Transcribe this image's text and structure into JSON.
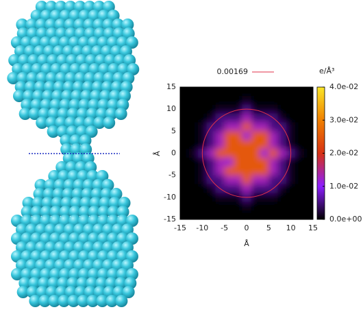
{
  "chart_data": {
    "type": "heatmap",
    "xlabel": "Å",
    "ylabel": "Å",
    "xlim": [
      -15,
      15
    ],
    "ylim": [
      -15,
      15
    ],
    "xticks": [
      -15,
      -10,
      -5,
      0,
      5,
      10,
      15
    ],
    "yticks": [
      -15,
      -10,
      -5,
      0,
      5,
      10,
      15
    ],
    "x": [
      -14,
      -12,
      -10,
      -8,
      -6,
      -4,
      -2,
      0,
      2,
      4,
      6,
      8,
      10,
      12,
      14
    ],
    "y": [
      14,
      12,
      10,
      8,
      6,
      4,
      2,
      0,
      -2,
      -4,
      -6,
      -8,
      -10,
      -12,
      -14
    ],
    "z": [
      [
        0,
        0,
        0,
        0,
        0,
        0,
        0,
        0,
        0,
        0,
        0,
        0,
        0,
        0,
        0
      ],
      [
        0,
        0,
        0,
        0,
        0,
        0,
        0,
        0.001,
        0,
        0,
        0,
        0,
        0,
        0,
        0
      ],
      [
        0,
        0,
        0,
        0,
        0.001,
        0.001,
        0.001,
        0.005,
        0.001,
        0.001,
        0.001,
        0,
        0,
        0,
        0
      ],
      [
        0,
        0,
        0,
        0.001,
        0.005,
        0.005,
        0.005,
        0.013,
        0.005,
        0.005,
        0.005,
        0.001,
        0,
        0,
        0
      ],
      [
        0,
        0,
        0.001,
        0.005,
        0.005,
        0.013,
        0.013,
        0.025,
        0.013,
        0.013,
        0.005,
        0.005,
        0.001,
        0,
        0
      ],
      [
        0,
        0,
        0.001,
        0.005,
        0.013,
        0.025,
        0.025,
        0.012,
        0.025,
        0.025,
        0.013,
        0.005,
        0.001,
        0,
        0
      ],
      [
        0,
        0,
        0.001,
        0.005,
        0.013,
        0.025,
        0.025,
        0.025,
        0.025,
        0.025,
        0.013,
        0.005,
        0.001,
        0,
        0
      ],
      [
        0,
        0.001,
        0.005,
        0.013,
        0.025,
        0.025,
        0.025,
        0.025,
        0.025,
        0.012,
        0.025,
        0.013,
        0.005,
        0.001,
        0
      ],
      [
        0,
        0,
        0.001,
        0.005,
        0.013,
        0.012,
        0.025,
        0.025,
        0.025,
        0.025,
        0.013,
        0.005,
        0.001,
        0,
        0
      ],
      [
        0,
        0,
        0.001,
        0.005,
        0.013,
        0.025,
        0.025,
        0.025,
        0.025,
        0.025,
        0.013,
        0.005,
        0.001,
        0,
        0
      ],
      [
        0,
        0,
        0.001,
        0.005,
        0.005,
        0.013,
        0.013,
        0.025,
        0.013,
        0.013,
        0.005,
        0.005,
        0.001,
        0,
        0
      ],
      [
        0,
        0,
        0,
        0.001,
        0.005,
        0.005,
        0.005,
        0.013,
        0.005,
        0.005,
        0.005,
        0.001,
        0,
        0,
        0
      ],
      [
        0,
        0,
        0,
        0,
        0.001,
        0.001,
        0.001,
        0.005,
        0.001,
        0.001,
        0.001,
        0,
        0,
        0,
        0
      ],
      [
        0,
        0,
        0,
        0,
        0,
        0,
        0,
        0.001,
        0,
        0,
        0,
        0,
        0,
        0,
        0
      ],
      [
        0,
        0,
        0,
        0,
        0,
        0,
        0,
        0,
        0,
        0,
        0,
        0,
        0,
        0,
        0
      ]
    ],
    "contour": {
      "level": 0.00169,
      "color": "#e0304a"
    },
    "colorbar": {
      "label": "e/Å³",
      "lim": [
        0,
        0.04
      ],
      "ticks": [
        {
          "value": 0,
          "label": "0.0e+00"
        },
        {
          "value": 0.01,
          "label": "1.0e-02"
        },
        {
          "value": 0.02,
          "label": "2.0e-02"
        },
        {
          "value": 0.03,
          "label": "3.0e-02"
        },
        {
          "value": 0.04,
          "label": "4.0e-02"
        }
      ]
    }
  }
}
